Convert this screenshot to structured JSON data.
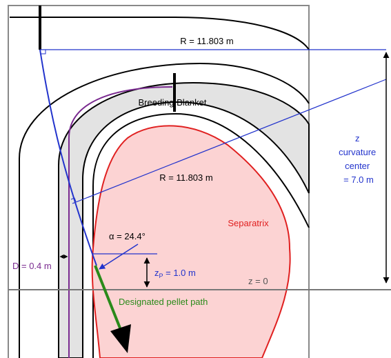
{
  "labels": {
    "radius_top": "R = 11.803 m",
    "breeding_blanket": "Breeding Blanket",
    "curvature": [
      "z",
      "curvature",
      "center",
      "= 7.0 m"
    ],
    "radius_inner": "R = 11.803 m",
    "separatrix": "Separatrix",
    "alpha": "α = 24.4°",
    "distance": "D = 0.4 m",
    "zp": {
      "main": "z",
      "sub": "P",
      "rest": " = 1.0 m"
    },
    "z_zero": "z = 0",
    "pellet_path": "Designated pellet path"
  }
}
